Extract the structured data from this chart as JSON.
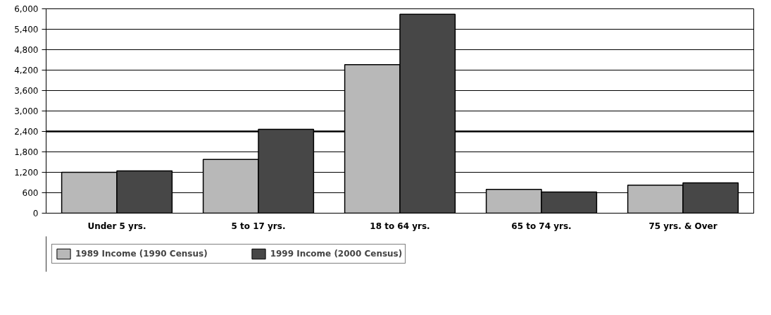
{
  "chart_data": {
    "type": "bar",
    "categories": [
      "Under 5 yrs.",
      "5 to 17 yrs.",
      "18 to 64 yrs.",
      "65 to 74 yrs.",
      "75 yrs. & Over"
    ],
    "series": [
      {
        "name": "1989 Income (1990 Census)",
        "color": "#b8b8b8",
        "values": [
          1200,
          1580,
          4360,
          700,
          820
        ]
      },
      {
        "name": "1999 Income (2000 Census)",
        "color": "#474747",
        "values": [
          1240,
          2460,
          5840,
          620,
          890
        ]
      }
    ],
    "ylim": [
      0,
      6000
    ],
    "yticks": [
      {
        "value": 0,
        "label": "0"
      },
      {
        "value": 600,
        "label": "600"
      },
      {
        "value": 1200,
        "label": "1,200"
      },
      {
        "value": 1800,
        "label": "1,800"
      },
      {
        "value": 2400,
        "label": "2,400"
      },
      {
        "value": 3000,
        "label": "3,000"
      },
      {
        "value": 3600,
        "label": "3,600"
      },
      {
        "value": 4200,
        "label": "4,200"
      },
      {
        "value": 4800,
        "label": "4,800"
      },
      {
        "value": 5400,
        "label": "5,400"
      },
      {
        "value": 6000,
        "label": "6,000"
      }
    ],
    "ref_lines": [
      {
        "axis": "y",
        "value": 2400,
        "color": "#000000"
      }
    ],
    "grid": "y",
    "legend": "bottom"
  }
}
